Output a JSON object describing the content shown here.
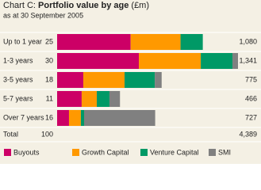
{
  "chart_data": {
    "type": "bar",
    "orientation": "horizontal",
    "stacked": true,
    "title_prefix": "Chart C:",
    "title": "Portfolio value by age",
    "title_unit": "(£m)",
    "subtitle": "as at 30 September 2005",
    "categories": [
      "Up to 1 year",
      "1-3 years",
      "3-5 years",
      "5-7 years",
      "Over 7 years"
    ],
    "share_column": {
      "values": [
        25,
        30,
        18,
        11,
        16
      ]
    },
    "total_column": {
      "values": [
        1080,
        1341,
        775,
        466,
        727
      ],
      "value_labels": [
        "1,080",
        "1,341",
        "775",
        "466",
        "727"
      ]
    },
    "series": [
      {
        "name": "Buyouts",
        "color": "#cc0066",
        "values": [
          545,
          606,
          194,
          182,
          88
        ]
      },
      {
        "name": "Growth Capital",
        "color": "#ff9900",
        "values": [
          370,
          459,
          306,
          112,
          88
        ]
      },
      {
        "name": "Venture Capital",
        "color": "#009966",
        "values": [
          165,
          235,
          224,
          94,
          24
        ]
      },
      {
        "name": "SMI",
        "color": "#808080",
        "values": [
          0,
          41,
          51,
          78,
          527
        ]
      }
    ],
    "total_row": {
      "label": "Total",
      "share": 100,
      "value": 4389,
      "value_label": "4,389"
    }
  }
}
